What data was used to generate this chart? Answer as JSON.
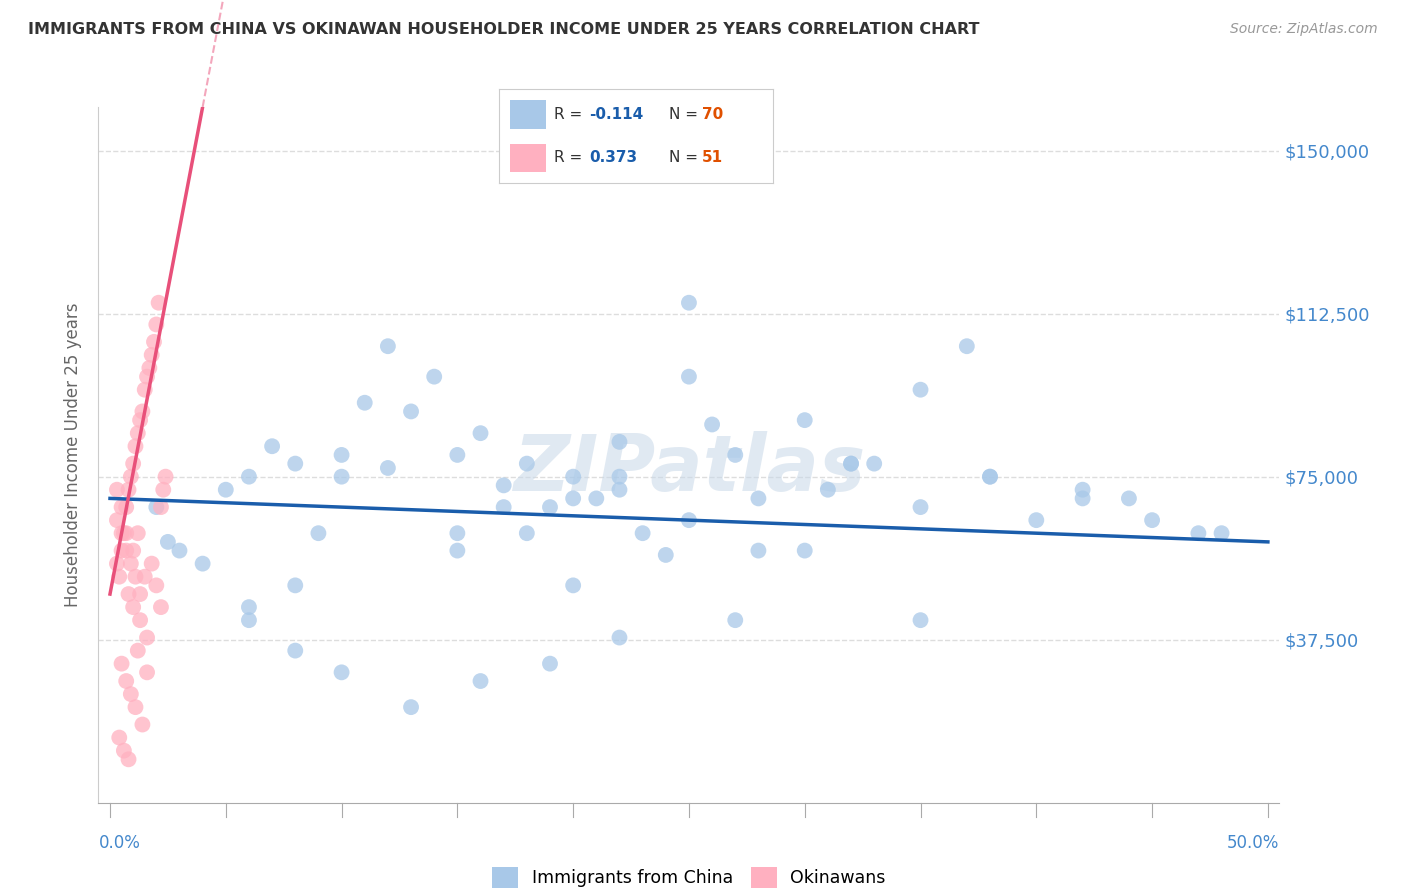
{
  "title": "IMMIGRANTS FROM CHINA VS OKINAWAN HOUSEHOLDER INCOME UNDER 25 YEARS CORRELATION CHART",
  "source": "Source: ZipAtlas.com",
  "ylabel": "Householder Income Under 25 years",
  "watermark": "ZIPatlas",
  "xlim": [
    -0.005,
    0.505
  ],
  "ylim": [
    0,
    160000
  ],
  "yticks": [
    0,
    37500,
    75000,
    112500,
    150000
  ],
  "ytick_labels": [
    "",
    "$37,500",
    "$75,000",
    "$112,500",
    "$150,000"
  ],
  "blue_R": -0.114,
  "blue_N": 70,
  "pink_R": 0.373,
  "pink_N": 51,
  "blue_color": "#A8C8E8",
  "pink_color": "#FFB0C0",
  "blue_line_color": "#1A5DAB",
  "pink_line_color": "#E8507A",
  "title_color": "#333333",
  "source_color": "#999999",
  "legend_R_color": "#1A5DAB",
  "legend_N_color": "#E05000",
  "ytick_color": "#4488CC",
  "xtick_label_left": "0.0%",
  "xtick_label_right": "50.0%",
  "blue_scatter_x": [
    0.02,
    0.025,
    0.03,
    0.05,
    0.06,
    0.07,
    0.08,
    0.09,
    0.1,
    0.11,
    0.12,
    0.13,
    0.14,
    0.15,
    0.16,
    0.17,
    0.18,
    0.19,
    0.2,
    0.21,
    0.22,
    0.22,
    0.23,
    0.24,
    0.25,
    0.26,
    0.27,
    0.28,
    0.3,
    0.31,
    0.32,
    0.33,
    0.35,
    0.37,
    0.38,
    0.4,
    0.42,
    0.44,
    0.45,
    0.47,
    0.48,
    0.27,
    0.22,
    0.19,
    0.16,
    0.13,
    0.1,
    0.08,
    0.06,
    0.38,
    0.32,
    0.25,
    0.2,
    0.15,
    0.1,
    0.08,
    0.06,
    0.04,
    0.3,
    0.22,
    0.17,
    0.12,
    0.25,
    0.35,
    0.2,
    0.15,
    0.35,
    0.28,
    0.18,
    0.42
  ],
  "blue_scatter_y": [
    68000,
    60000,
    58000,
    72000,
    75000,
    82000,
    78000,
    62000,
    75000,
    92000,
    105000,
    90000,
    98000,
    80000,
    85000,
    73000,
    78000,
    68000,
    75000,
    70000,
    83000,
    75000,
    62000,
    57000,
    98000,
    87000,
    80000,
    70000,
    88000,
    72000,
    78000,
    78000,
    68000,
    105000,
    75000,
    65000,
    72000,
    70000,
    65000,
    62000,
    62000,
    42000,
    38000,
    32000,
    28000,
    22000,
    30000,
    35000,
    45000,
    75000,
    78000,
    65000,
    70000,
    58000,
    80000,
    50000,
    42000,
    55000,
    58000,
    72000,
    68000,
    77000,
    115000,
    95000,
    50000,
    62000,
    42000,
    58000,
    62000,
    70000
  ],
  "pink_scatter_x": [
    0.003,
    0.004,
    0.005,
    0.006,
    0.007,
    0.008,
    0.009,
    0.01,
    0.011,
    0.012,
    0.013,
    0.014,
    0.015,
    0.016,
    0.017,
    0.018,
    0.019,
    0.02,
    0.021,
    0.022,
    0.023,
    0.024,
    0.01,
    0.012,
    0.015,
    0.008,
    0.01,
    0.013,
    0.016,
    0.005,
    0.007,
    0.009,
    0.011,
    0.014,
    0.004,
    0.006,
    0.008,
    0.012,
    0.016,
    0.003,
    0.005,
    0.007,
    0.009,
    0.011,
    0.013,
    0.003,
    0.005,
    0.007,
    0.018,
    0.02,
    0.022
  ],
  "pink_scatter_y": [
    55000,
    52000,
    58000,
    62000,
    68000,
    72000,
    75000,
    78000,
    82000,
    85000,
    88000,
    90000,
    95000,
    98000,
    100000,
    103000,
    106000,
    110000,
    115000,
    68000,
    72000,
    75000,
    58000,
    62000,
    52000,
    48000,
    45000,
    42000,
    38000,
    32000,
    28000,
    25000,
    22000,
    18000,
    15000,
    12000,
    10000,
    35000,
    30000,
    65000,
    62000,
    58000,
    55000,
    52000,
    48000,
    72000,
    68000,
    62000,
    55000,
    50000,
    45000
  ],
  "grid_color": "#DDDDDD",
  "background_color": "#FFFFFF",
  "legend_box_color": "#FFFFFF",
  "legend_border_color": "#CCCCCC"
}
